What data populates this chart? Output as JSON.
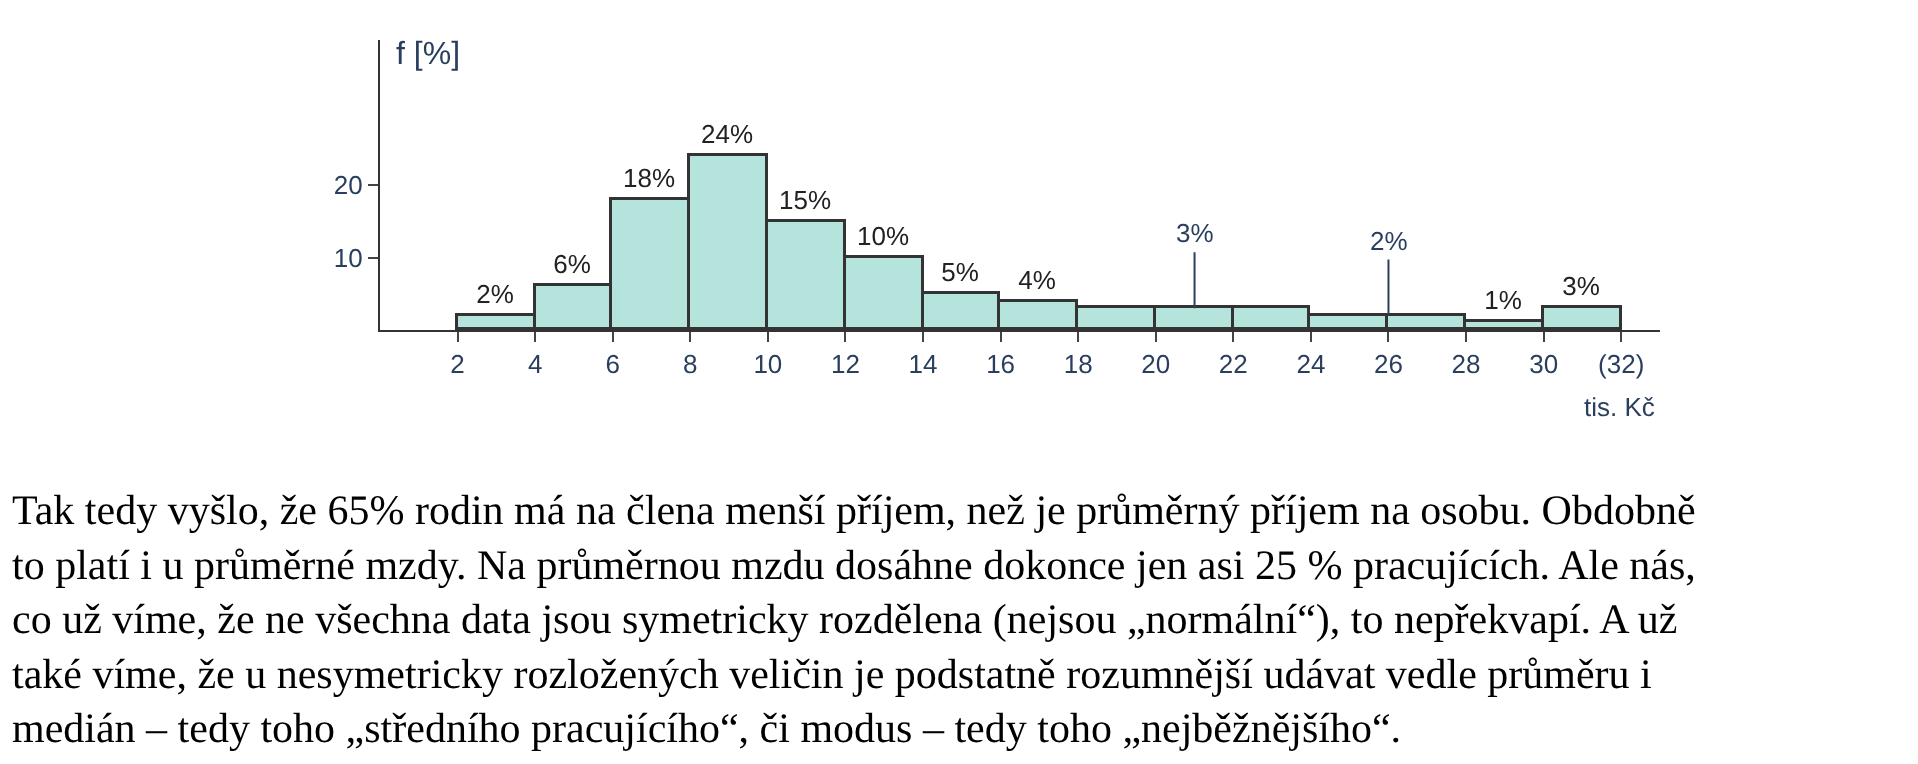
{
  "chart_data": {
    "type": "histogram",
    "bins": [
      2,
      4,
      6,
      8,
      10,
      12,
      14,
      16,
      18,
      20,
      22,
      24,
      26,
      28,
      30,
      32
    ],
    "values": [
      2,
      6,
      18,
      24,
      15,
      10,
      5,
      4,
      3,
      3,
      3,
      2,
      2,
      1,
      3
    ],
    "value_labels": [
      "2%",
      "6%",
      "18%",
      "24%",
      "15%",
      "10%",
      "5%",
      "4%",
      null,
      null,
      null,
      null,
      null,
      "1%",
      "3%"
    ],
    "color": "#b4e4dc",
    "ylabel": "f [%]",
    "xlabel": "tis. Kč",
    "xlim": [
      0,
      33
    ],
    "xticks": [
      2,
      4,
      6,
      8,
      10,
      12,
      14,
      16,
      18,
      20,
      22,
      24,
      26,
      28,
      30,
      {
        "value": 32,
        "label": "(32)"
      }
    ],
    "ylim": [
      0,
      40
    ],
    "yticks": [
      10,
      20
    ],
    "annotations": [
      {
        "text": "3%",
        "x": 21,
        "y": 3
      },
      {
        "text": "2%",
        "x": 26,
        "y": 2
      },
      "Tak tedy vyšlo, že 65% rodin má na člena menší příjem, než je průměrný příjem na osobu. Obdobně\nto platí i u průměrné mzdy. Na průměrnou mzdu dosáhne dokonce jen asi 25 % pracujících. Ale nás,\nco už víme, že ne všechna data jsou symetricky rozdělena (nejsou „normální“), to nepřekvapí. A už\ntaké víme, že u nesymetricky rozložených veličin je podstatně rozumnější udávat vedle průměru i\nmedián – tedy toho „středního pracujícího“, či modus – tedy toho „nejběžnějšího“."
    ]
  }
}
